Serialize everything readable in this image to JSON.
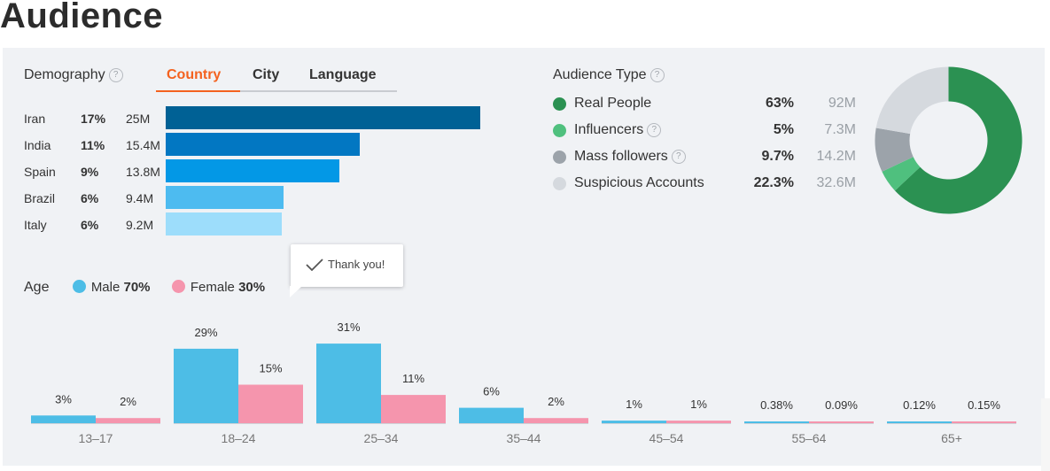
{
  "page": {
    "title": "Audience"
  },
  "demography": {
    "label": "Demography",
    "help": "?",
    "tabs": [
      {
        "label": "Country",
        "active": true
      },
      {
        "label": "City",
        "active": false
      },
      {
        "label": "Language",
        "active": false
      }
    ]
  },
  "audience_type": {
    "label": "Audience Type",
    "help": "?"
  },
  "age": {
    "label": "Age",
    "male_label": "Male",
    "male_pct": "70%",
    "female_label": "Female",
    "female_pct": "30%"
  },
  "tooltip": {
    "text": "Thank you!"
  },
  "colors": {
    "male": "#4dbde6",
    "female": "#f595ad",
    "accent": "#f4621f",
    "real_people": "#2b9152",
    "influencers": "#4fc07e",
    "mass_followers": "#9ca3aa",
    "suspicious": "#d5d9de"
  },
  "chart_data": [
    {
      "type": "bar",
      "orientation": "horizontal",
      "categories": [
        "Iran",
        "India",
        "Spain",
        "Brazil",
        "Italy"
      ],
      "values": [
        17,
        11,
        9,
        6,
        6
      ],
      "value_labels": [
        "17%",
        "11%",
        "9%",
        "6%",
        "6%"
      ],
      "counts": [
        "25M",
        "15.4M",
        "13.8M",
        "9.4M",
        "9.2M"
      ],
      "count_values": [
        25,
        15.4,
        13.8,
        9.4,
        9.2
      ],
      "bar_colors": [
        "#006195",
        "#0277c2",
        "#0398e6",
        "#4dbbf0",
        "#9dddfb"
      ]
    },
    {
      "type": "pie",
      "donut": true,
      "categories": [
        "Real People",
        "Influencers",
        "Mass followers",
        "Suspicious Accounts"
      ],
      "values": [
        63,
        5,
        9.7,
        22.3
      ],
      "value_labels": [
        "63%",
        "5%",
        "9.7%",
        "22.3%"
      ],
      "counts": [
        "92M",
        "7.3M",
        "14.2M",
        "32.6M"
      ],
      "help": [
        false,
        true,
        true,
        false
      ],
      "colors": [
        "#2b9152",
        "#4fc07e",
        "#9ca3aa",
        "#d5d9de"
      ]
    },
    {
      "type": "bar",
      "categories": [
        "13–17",
        "18–24",
        "25–34",
        "35–44",
        "45–54",
        "55–64",
        "65+"
      ],
      "series": [
        {
          "name": "Male",
          "values": [
            3,
            29,
            31,
            6,
            1,
            0.38,
            0.12
          ],
          "labels": [
            "3%",
            "29%",
            "31%",
            "6%",
            "1%",
            "0.38%",
            "0.12%"
          ]
        },
        {
          "name": "Female",
          "values": [
            2,
            15,
            11,
            2,
            1,
            0.09,
            0.15
          ],
          "labels": [
            "2%",
            "15%",
            "11%",
            "2%",
            "1%",
            "0.09%",
            "0.15%"
          ]
        }
      ]
    }
  ]
}
